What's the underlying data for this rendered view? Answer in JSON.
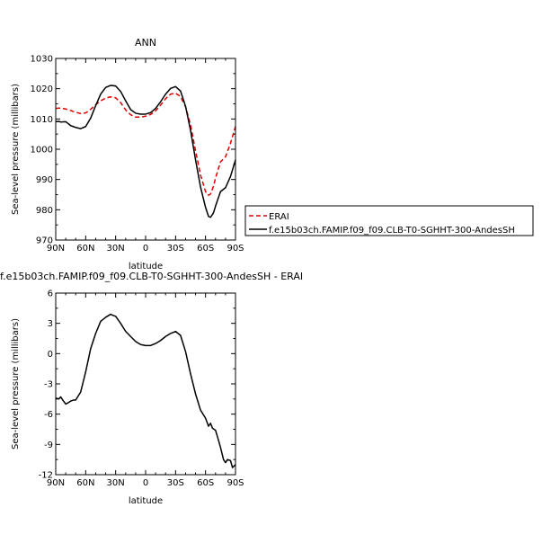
{
  "chart_data": [
    {
      "type": "line",
      "title": "ANN",
      "xlabel": "latitude",
      "ylabel": "Sea-level pressure (millibars)",
      "xlim": [
        90,
        -90
      ],
      "ylim": [
        970,
        1030
      ],
      "x_ticks": [
        90,
        60,
        30,
        0,
        -30,
        -60,
        -90
      ],
      "x_tick_labels": [
        "90N",
        "60N",
        "30N",
        "0",
        "30S",
        "60S",
        "90S"
      ],
      "y_ticks": [
        970,
        980,
        990,
        1000,
        1010,
        1020,
        1030
      ],
      "y_tick_labels": [
        "970",
        "980",
        "990",
        "1000",
        "1010",
        "1020",
        "1030"
      ],
      "legend_position": "right, outside plot",
      "series": [
        {
          "name": "ERAI",
          "color": "#dd0000",
          "dash": "dashed",
          "x": [
            90,
            85,
            80,
            75,
            70,
            65,
            60,
            55,
            50,
            45,
            40,
            35,
            30,
            25,
            20,
            15,
            10,
            5,
            0,
            -5,
            -10,
            -15,
            -20,
            -25,
            -30,
            -35,
            -40,
            -45,
            -50,
            -55,
            -60,
            -63,
            -65,
            -68,
            -70,
            -75,
            -80,
            -85,
            -90
          ],
          "y": [
            1013.5,
            1013.6,
            1013.3,
            1012.8,
            1012.2,
            1011.8,
            1012.0,
            1013.2,
            1014.7,
            1016.0,
            1016.9,
            1017.3,
            1017.0,
            1015.4,
            1013.0,
            1011.4,
            1010.6,
            1010.6,
            1010.9,
            1011.5,
            1012.7,
            1014.6,
            1016.7,
            1018.2,
            1018.5,
            1017.4,
            1014.0,
            1008.0,
            999.5,
            991.5,
            986.0,
            984.8,
            985.2,
            987.8,
            990.5,
            995.8,
            997.5,
            1002.0,
            1007.5
          ]
        },
        {
          "name": "f.e15b03ch.FAMIP.f09_f09.CLB-T0-SGHHT-300-AndesSH",
          "color": "#000000",
          "dash": "solid",
          "x": [
            90,
            87,
            85,
            80,
            78,
            75,
            70,
            65,
            60,
            55,
            50,
            45,
            40,
            35,
            30,
            25,
            20,
            15,
            10,
            5,
            0,
            -5,
            -10,
            -15,
            -20,
            -25,
            -30,
            -35,
            -40,
            -45,
            -50,
            -55,
            -60,
            -63,
            -65,
            -68,
            -70,
            -75,
            -80,
            -85,
            -90
          ],
          "y": [
            1009.1,
            1009.2,
            1009.0,
            1009.1,
            1008.6,
            1007.8,
            1007.2,
            1006.8,
            1007.5,
            1010.3,
            1014.4,
            1018.2,
            1020.4,
            1021.1,
            1020.9,
            1019.1,
            1016.0,
            1013.1,
            1011.9,
            1011.6,
            1011.6,
            1012.1,
            1013.5,
            1015.7,
            1018.2,
            1020.1,
            1020.7,
            1019.2,
            1014.2,
            1006.2,
            996.5,
            987.5,
            980.8,
            977.8,
            977.5,
            979.0,
            981.2,
            986.0,
            987.3,
            991.0,
            996.5
          ]
        }
      ]
    },
    {
      "type": "line",
      "title": "f.e15b03ch.FAMIP.f09_f09.CLB-T0-SGHHT-300-AndesSH - ERAI",
      "xlabel": "latitude",
      "ylabel": "Sea-level pressure (millibars)",
      "xlim": [
        90,
        -90
      ],
      "ylim": [
        -12,
        6
      ],
      "x_ticks": [
        90,
        60,
        30,
        0,
        -30,
        -60,
        -90
      ],
      "x_tick_labels": [
        "90N",
        "60N",
        "30N",
        "0",
        "30S",
        "60S",
        "90S"
      ],
      "y_ticks": [
        -12,
        -9,
        -6,
        -3,
        0,
        3,
        6
      ],
      "y_tick_labels": [
        "-12",
        "-9",
        "-6",
        "-3",
        "0",
        "3",
        "6"
      ],
      "series": [
        {
          "color": "#000000",
          "dash": "solid",
          "x": [
            90,
            87,
            85,
            83,
            80,
            78,
            75,
            72,
            70,
            65,
            60,
            55,
            50,
            45,
            40,
            35,
            33,
            30,
            25,
            20,
            15,
            10,
            5,
            0,
            -5,
            -10,
            -15,
            -20,
            -25,
            -30,
            -35,
            -40,
            -45,
            -50,
            -55,
            -60,
            -63,
            -65,
            -67,
            -70,
            -73,
            -75,
            -78,
            -80,
            -82,
            -85,
            -87,
            -90
          ],
          "y": [
            -4.4,
            -4.5,
            -4.3,
            -4.6,
            -5.0,
            -4.9,
            -4.7,
            -4.6,
            -4.6,
            -3.8,
            -1.8,
            0.5,
            2.0,
            3.2,
            3.6,
            3.9,
            3.8,
            3.7,
            3.0,
            2.2,
            1.7,
            1.2,
            0.9,
            0.8,
            0.8,
            1.0,
            1.3,
            1.7,
            2.0,
            2.2,
            1.8,
            0.2,
            -2.0,
            -4.0,
            -5.6,
            -6.4,
            -7.2,
            -6.9,
            -7.4,
            -7.6,
            -8.6,
            -9.3,
            -10.5,
            -10.8,
            -10.5,
            -10.6,
            -11.3,
            -11.0
          ]
        }
      ]
    }
  ]
}
